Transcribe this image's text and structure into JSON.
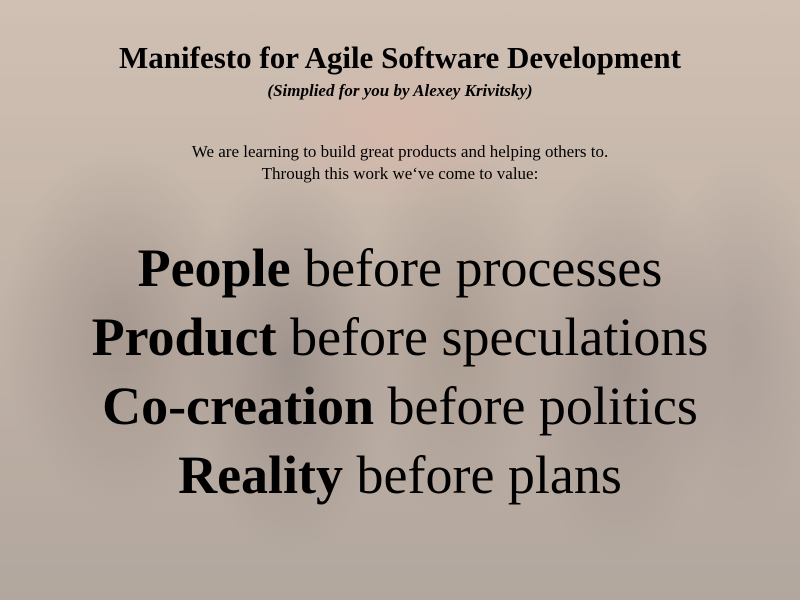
{
  "slide": {
    "title": "Manifesto for Agile Software Development",
    "subtitle": "(Simplied for you by Alexey Krivitsky)",
    "intro": [
      "We are learning to build great products and helping others to.",
      "Through this work we‘ve come to value:"
    ],
    "values": [
      {
        "key": "People",
        "rest": " before processes"
      },
      {
        "key": "Product",
        "rest": " before speculations"
      },
      {
        "key": "Co-creation",
        "rest": " before politics"
      },
      {
        "key": "Reality",
        "rest": " before plans"
      }
    ]
  }
}
